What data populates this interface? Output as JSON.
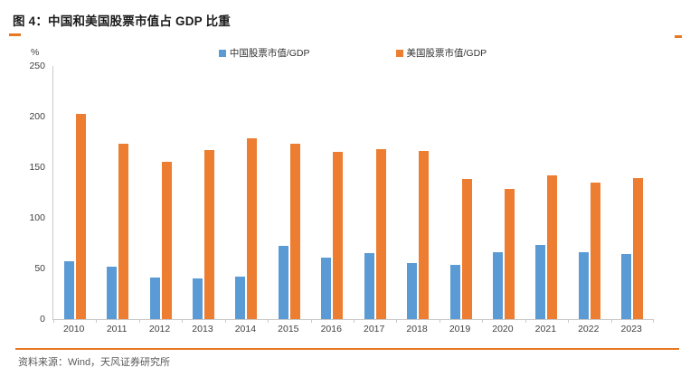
{
  "header": {
    "title": "图 4：中国和美国股票市值占 GDP 比重"
  },
  "footer": {
    "source": "资料来源：Wind，天风证券研究所"
  },
  "colors": {
    "china_blue": "#5B9BD5",
    "us_orange": "#ED7D31",
    "accent_orange": "#E87722",
    "axis_gray": "#C9C9C9",
    "text_gray": "#404040"
  },
  "chart_data": {
    "type": "bar",
    "title": "中国和美国股票市值占 GDP 比重",
    "unit": "%",
    "xlabel": "",
    "ylabel": "%",
    "ylim": [
      0,
      250
    ],
    "yticks": [
      0,
      50,
      100,
      150,
      200,
      250
    ],
    "grid": false,
    "legend_position": "top",
    "categories": [
      "2010",
      "2011",
      "2012",
      "2013",
      "2014",
      "2015",
      "2016",
      "2017",
      "2018",
      "2019",
      "2020",
      "2021",
      "2022",
      "2023"
    ],
    "series": [
      {
        "name": "中国股票市值/GDP",
        "color": "#5B9BD5",
        "values": [
          57,
          52,
          41,
          40,
          42,
          72,
          61,
          65,
          55,
          54,
          66,
          73,
          66,
          64
        ]
      },
      {
        "name": "美国股票市值/GDP",
        "color": "#ED7D31",
        "values": [
          203,
          173,
          155,
          167,
          179,
          173,
          165,
          168,
          166,
          138,
          129,
          142,
          135,
          139
        ]
      }
    ]
  }
}
